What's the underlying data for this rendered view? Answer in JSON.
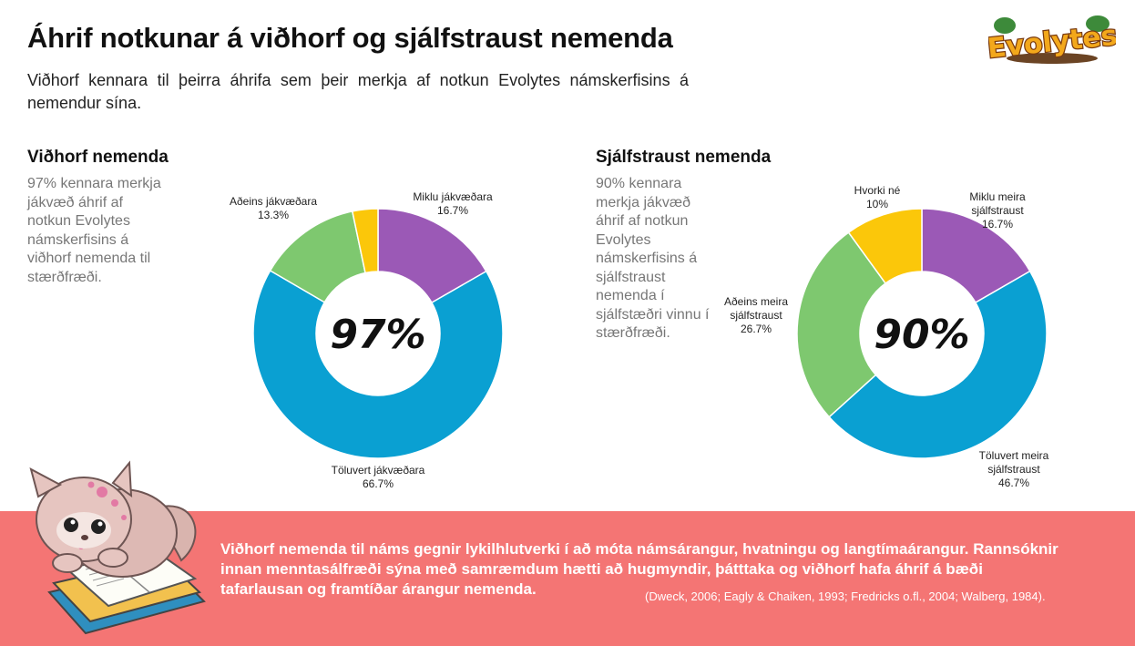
{
  "header": {
    "title": "Áhrif notkunar á viðhorf og sjálfstraust nemenda",
    "subtitle": "Viðhorf kennara til þeirra áhrifa sem þeir merkja af notkun Evolytes námskerfisins á nemendur sína.",
    "logo_text": "Evolytes"
  },
  "sections": [
    {
      "title": "Viðhorf nemenda",
      "description": "97% kennara merkja jákvæð áhrif af notkun Evolytes námskerfisins á viðhorf nemenda til stærðfræði."
    },
    {
      "title": "Sjálfstraust nemenda",
      "description": "90% kennara merkja jákvæð áhrif af notkun Evolytes námskerfisins á sjálfstraust nemenda í sjálfstæðri vinnu í stærðfræði."
    }
  ],
  "chart_data": [
    {
      "type": "pie",
      "title": "Viðhorf nemenda",
      "center_label": "97%",
      "slices": [
        {
          "label": "Miklu jákvæðara",
          "value": 16.7,
          "display": "16.7%",
          "color": "#9b59b6"
        },
        {
          "label": "Töluvert jákvæðara",
          "value": 66.7,
          "display": "66.7%",
          "color": "#0aa0d2"
        },
        {
          "label": "Aðeins jákvæðara",
          "value": 13.3,
          "display": "13.3%",
          "color": "#7ec86f"
        },
        {
          "label": "",
          "value": 3.3,
          "display": "",
          "color": "#fbc70a"
        }
      ]
    },
    {
      "type": "pie",
      "title": "Sjálfstraust nemenda",
      "center_label": "90%",
      "slices": [
        {
          "label": "Miklu meira sjálfstraust",
          "value": 16.7,
          "display": "16.7%",
          "color": "#9b59b6"
        },
        {
          "label": "Töluvert meira sjálfstraust",
          "value": 46.7,
          "display": "46.7%",
          "color": "#0aa0d2"
        },
        {
          "label": "Aðeins meira sjálfstraust",
          "value": 26.7,
          "display": "26.7%",
          "color": "#7ec86f"
        },
        {
          "label": "Hvorki né",
          "value": 10,
          "display": "10%",
          "color": "#fbc70a"
        }
      ]
    }
  ],
  "banner": {
    "text": "Viðhorf nemenda til náms gegnir lykilhlutverki í að móta námsárangur, hvatningu og langtímaárangur. Rannsóknir innan menntasálfræði sýna með samræmdum hætti að hugmyndir, þátttaka og viðhorf hafa áhrif á bæði tafarlausan og framtíðar árangur nemenda.",
    "citation": "(Dweck, 2006; Eagly & Chaiken, 1993; Fredricks o.fl., 2004; Walberg, 1984).",
    "color": "#f47574"
  }
}
